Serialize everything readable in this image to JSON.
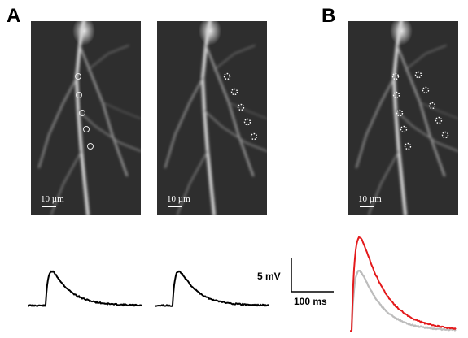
{
  "panels": {
    "a_label": "A",
    "b_label": "B"
  },
  "micrographs": [
    {
      "scale_label": "10 µm",
      "roi_style": "solid"
    },
    {
      "scale_label": "10 µm",
      "roi_style": "dotted"
    },
    {
      "scale_label": "10 µm",
      "roi_style": "dotted"
    }
  ],
  "calibration": {
    "voltage_label": "5 mV",
    "time_label": "100 ms"
  },
  "colors": {
    "trace_black": "#000000",
    "trace_red": "#e41a1c",
    "trace_gray": "#bdbdbd",
    "micrograph_bg": "#2e2e2e"
  },
  "chart_data": {
    "type": "line",
    "traces": [
      {
        "panel": "A",
        "position": "left",
        "color": "#000000",
        "peak_rel": 1.0
      },
      {
        "panel": "A",
        "position": "middle",
        "color": "#000000",
        "peak_rel": 1.0
      },
      {
        "panel": "B",
        "position": "right",
        "color": "#e41a1c",
        "peak_rel": 2.5
      },
      {
        "panel": "B",
        "position": "right",
        "color": "#bdbdbd",
        "peak_rel": 1.6
      }
    ]
  }
}
